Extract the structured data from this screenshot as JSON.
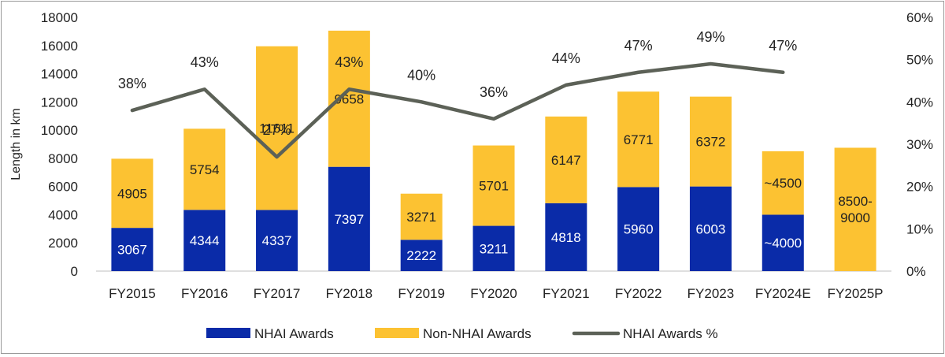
{
  "chart_data": {
    "type": "bar",
    "stacked": true,
    "ylabel": "Length in km",
    "ylim": [
      0,
      18000
    ],
    "yticks": [
      "0",
      "2000",
      "4000",
      "6000",
      "8000",
      "10000",
      "12000",
      "14000",
      "16000",
      "18000"
    ],
    "y2lim": [
      0,
      60
    ],
    "y2ticks": [
      "0%",
      "10%",
      "20%",
      "30%",
      "40%",
      "50%",
      "60%"
    ],
    "categories": [
      "FY2015",
      "FY2016",
      "FY2017",
      "FY2018",
      "FY2019",
      "FY2020",
      "FY2021",
      "FY2022",
      "FY2023",
      "FY2024E",
      "FY2025P"
    ],
    "series": [
      {
        "name": "NHAI Awards",
        "color": "#0a2ba8",
        "values": [
          3067,
          4344,
          4337,
          7397,
          2222,
          3211,
          4818,
          5960,
          6003,
          4000,
          0
        ],
        "labels": [
          "3067",
          "4344",
          "4337",
          "7397",
          "2222",
          "3211",
          "4818",
          "5960",
          "6003",
          "~4000",
          ""
        ]
      },
      {
        "name": "Non-NHAI Awards",
        "color": "#fcc232",
        "values": [
          4905,
          5754,
          11611,
          9658,
          3271,
          5701,
          6147,
          6771,
          6372,
          4500,
          8750
        ],
        "labels": [
          "4905",
          "5754",
          "11611",
          "9658",
          "3271",
          "5701",
          "6147",
          "6771",
          "6372",
          "~4500",
          "8500-\n9000"
        ]
      },
      {
        "name": "NHAI Awards %",
        "type": "line",
        "axis": "secondary",
        "color": "#5c6157",
        "values": [
          38,
          43,
          27,
          43,
          40,
          36,
          44,
          47,
          49,
          47,
          null
        ],
        "labels": [
          "38%",
          "43%",
          "27%",
          "43%",
          "40%",
          "36%",
          "44%",
          "47%",
          "49%",
          "47%",
          ""
        ]
      }
    ],
    "legend": "bottom",
    "grid": false
  }
}
